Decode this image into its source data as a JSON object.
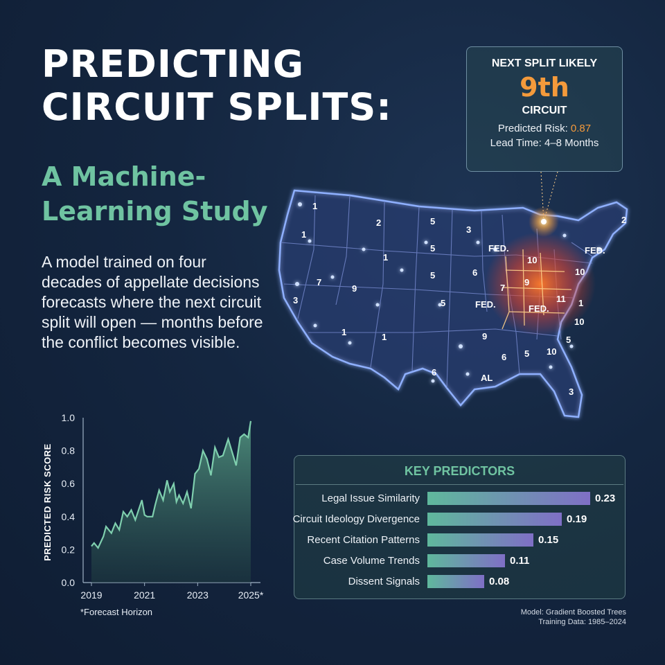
{
  "header": {
    "title_lines": [
      "PREDICTING",
      "CIRCUIT SPLITS:"
    ],
    "subtitle_lines": [
      "A Machine-",
      "Learning Study"
    ],
    "lede": "A model trained on four decades of appellate decisions forecasts where the next circuit split will open — months before the conflict becomes visible."
  },
  "callout": {
    "heading": "NEXT SPLIT LIKELY",
    "circuit": "9th",
    "circuit_label": "CIRCUIT",
    "risk_label": "Predicted Risk:",
    "risk_value": "0.87",
    "lead_time": "Lead Time: 4–8 Months"
  },
  "map": {
    "labels": [
      "1",
      "1",
      "2",
      "5",
      "3",
      "5",
      "1",
      "5",
      "6",
      "FED.",
      "10",
      "7",
      "9",
      "FED.",
      "7",
      "9",
      "5",
      "FED.",
      "11",
      "3",
      "1",
      "9",
      "10",
      "1",
      "6",
      "5",
      "10",
      "6",
      "AL",
      "3",
      "2",
      "FED.",
      "10",
      "1",
      "5"
    ],
    "hotspot_color": "#f07a2c",
    "glow_color": "#7aa8ff"
  },
  "chart_data": {
    "type": "area",
    "title": "",
    "xlabel": "",
    "ylabel": "PREDICTED RISK SCORE",
    "xlim": [
      2019,
      2025
    ],
    "ylim": [
      0,
      1.0
    ],
    "x_ticks": [
      "2019",
      "2021",
      "2023",
      "2025*"
    ],
    "y_ticks": [
      "0.0",
      "0.2",
      "0.4",
      "0.6",
      "0.8",
      "1.0"
    ],
    "footnote": "*Forecast Horizon",
    "x": [
      2019.0,
      2019.1,
      2019.25,
      2019.45,
      2019.55,
      2019.75,
      2019.9,
      2020.05,
      2020.2,
      2020.35,
      2020.5,
      2020.65,
      2020.9,
      2021.0,
      2021.1,
      2021.3,
      2021.4,
      2021.55,
      2021.7,
      2021.85,
      2021.95,
      2022.1,
      2022.2,
      2022.3,
      2022.45,
      2022.6,
      2022.75,
      2022.9,
      2023.05,
      2023.2,
      2023.35,
      2023.5,
      2023.65,
      2023.8,
      2023.95,
      2024.15,
      2024.3,
      2024.45,
      2024.6,
      2024.75,
      2024.9,
      2025.0
    ],
    "values": [
      0.22,
      0.24,
      0.21,
      0.28,
      0.34,
      0.3,
      0.36,
      0.32,
      0.43,
      0.4,
      0.44,
      0.38,
      0.5,
      0.41,
      0.4,
      0.4,
      0.47,
      0.56,
      0.5,
      0.62,
      0.55,
      0.6,
      0.49,
      0.53,
      0.48,
      0.55,
      0.45,
      0.66,
      0.69,
      0.8,
      0.75,
      0.65,
      0.82,
      0.76,
      0.77,
      0.87,
      0.79,
      0.71,
      0.88,
      0.9,
      0.88,
      0.98
    ],
    "color": "#7fcfae"
  },
  "predictors": {
    "title": "KEY PREDICTORS",
    "items": [
      {
        "label": "Legal Issue Similarity",
        "value": 0.23,
        "display": "0.23"
      },
      {
        "label": "Circuit Ideology Divergence",
        "value": 0.19,
        "display": "0.19"
      },
      {
        "label": "Recent Citation Patterns",
        "value": 0.15,
        "display": "0.15"
      },
      {
        "label": "Case Volume Trends",
        "value": 0.11,
        "display": "0.11"
      },
      {
        "label": "Dissent Signals",
        "value": 0.08,
        "display": "0.08"
      }
    ]
  },
  "model_note": {
    "model": "Model: Gradient Boosted Trees",
    "training": "Training Data: 1985–2024"
  }
}
